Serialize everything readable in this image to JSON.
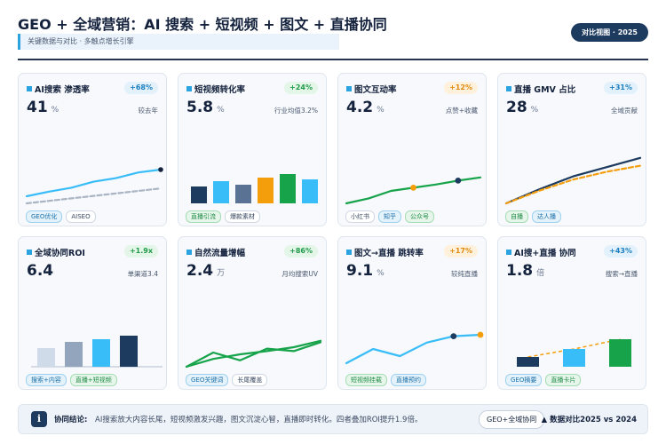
{
  "header": {
    "title": "GEO + 全域营销：AI 搜索 + 短视频 + 图文 + 直播协同",
    "subtitle": "关键数据与对比 · 多触点增长引擎",
    "badge": "对比视图 · 2025"
  },
  "cards": [
    {
      "title": "AI搜索 渗透率",
      "delta": "+68%",
      "delta_color": "blue",
      "value": "41",
      "unit": "%",
      "note": "较去年",
      "tags": [
        {
          "label": "GEO优化",
          "style": "b"
        },
        {
          "label": "AISEO",
          "style": "plain"
        }
      ],
      "chart_data": {
        "type": "line",
        "series": [
          {
            "values": [
              2.0,
              3.3,
              4.4,
              6.1,
              7.1,
              8.7,
              9.5
            ]
          },
          {
            "values": [
              0,
              0.7,
              1.4,
              2.1,
              2.8,
              3.5,
              4.2
            ]
          }
        ],
        "ylim": [
          0,
          20
        ]
      }
    },
    {
      "title": "短视频转化率",
      "delta": "+24%",
      "delta_color": "green",
      "value": "5.8",
      "unit": "%",
      "note": "行业均值3.2%",
      "tags": [
        {
          "label": "直播引流",
          "style": "g"
        },
        {
          "label": "爆款素材",
          "style": "plain"
        }
      ],
      "chart_data": {
        "type": "bar",
        "values": [
          1.9,
          2.5,
          2.1,
          2.9,
          3.3,
          2.7
        ],
        "colors": [
          "#1d3a5f",
          "#38bdf8",
          "#5a7394",
          "#f59e0b",
          "#16a34a",
          "#38bdf8"
        ],
        "ylim": [
          0,
          8
        ]
      }
    },
    {
      "title": "图文互动率",
      "delta": "+12%",
      "delta_color": "orange",
      "value": "4.2",
      "unit": "%",
      "note": "点赞+收藏",
      "tags": [
        {
          "label": "小红书",
          "style": "plain"
        },
        {
          "label": "知乎",
          "style": "b"
        },
        {
          "label": "公众号",
          "style": "g"
        }
      ],
      "chart_data": {
        "type": "line",
        "series": [
          {
            "values": [
              0,
              1.4,
              3.5,
              4.4,
              5.3,
              6.4,
              7.3
            ]
          }
        ],
        "markers": [
          {
            "index": 3,
            "color": "#f59e0b"
          },
          {
            "index": 5,
            "color": "#1d3a5f"
          }
        ],
        "ylim": [
          0,
          20
        ]
      }
    },
    {
      "title": "直播 GMV 占比",
      "delta": "+31%",
      "delta_color": "blue",
      "value": "28",
      "unit": "%",
      "note": "全域贡献",
      "tags": [
        {
          "label": "自播",
          "style": "g"
        },
        {
          "label": "达人播",
          "style": "b"
        }
      ],
      "chart_data": {
        "type": "line",
        "series": [
          {
            "values": [
              0,
              4.0,
              7.6,
              10.2,
              12.8
            ]
          },
          {
            "values": [
              0,
              3.6,
              6.7,
              8.9,
              10.6
            ]
          }
        ],
        "ylim": [
          0,
          20
        ]
      }
    },
    {
      "title": "全域协同ROI",
      "delta": "+1.9x",
      "delta_color": "green",
      "value": "6.4",
      "unit": "",
      "note": "单渠道3.4",
      "tags": [
        {
          "label": "搜索+内容",
          "style": "b"
        },
        {
          "label": "直播+短视频",
          "style": "g"
        }
      ],
      "chart_data": {
        "type": "bar",
        "values": [
          2.1,
          2.8,
          3.1,
          3.5
        ],
        "colors": [
          "#cfdbe8",
          "#93a5bd",
          "#38bdf8",
          "#1d3a5f"
        ],
        "ylim": [
          0,
          8
        ]
      }
    },
    {
      "title": "自然流量增幅",
      "delta": "+86%",
      "delta_color": "green",
      "value": "2.4",
      "unit": "万",
      "note": "月均搜索UV",
      "tags": [
        {
          "label": "GEO关键词",
          "style": "b"
        },
        {
          "label": "长尾覆盖",
          "style": "plain"
        }
      ],
      "chart_data": {
        "type": "line",
        "series": [
          {
            "values": [
              0,
              4.0,
              1.8,
              5.1,
              4.4,
              6.9
            ]
          },
          {
            "values": [
              0,
              2.2,
              3.5,
              4.4,
              5.5,
              7.3
            ]
          }
        ],
        "ylim": [
          0,
          20
        ]
      }
    },
    {
      "title": "图文→直播 跳转率",
      "delta": "+17%",
      "delta_color": "orange",
      "value": "9.1",
      "unit": "%",
      "note": "较纯直播",
      "tags": [
        {
          "label": "短视频挂载",
          "style": "g"
        },
        {
          "label": "直播预约",
          "style": "b"
        }
      ],
      "chart_data": {
        "type": "line",
        "series": [
          {
            "values": [
              1.0,
              5.0,
              3.0,
              6.8,
              8.6,
              9.0
            ]
          }
        ],
        "markers": [
          {
            "index": 4,
            "color": "#1d3a5f"
          },
          {
            "index": 5,
            "color": "#f59e0b"
          }
        ],
        "ylim": [
          0,
          20
        ]
      }
    },
    {
      "title": "AI搜+直播 协同",
      "delta": "+43%",
      "delta_color": "blue",
      "value": "1.8",
      "unit": "倍",
      "note": "搜索→直播",
      "tags": [
        {
          "label": "GEO摘要",
          "style": "b"
        },
        {
          "label": "直播卡片",
          "style": "g"
        }
      ],
      "chart_data": {
        "type": "bar",
        "values": [
          1.1,
          2.0,
          3.1
        ],
        "colors": [
          "#1d3a5f",
          "#38bdf8",
          "#16a34a"
        ],
        "ylim": [
          0,
          8
        ]
      }
    }
  ],
  "footer": {
    "label": "协同结论:",
    "text": "AI搜索放大内容长尾，短视频激发兴趣，图文沉淀心智，直播即时转化。四者叠加ROI提升1.9倍。",
    "pill": "GEO+全域协同",
    "right": "▲ 数据对比2025 vs 2024"
  }
}
